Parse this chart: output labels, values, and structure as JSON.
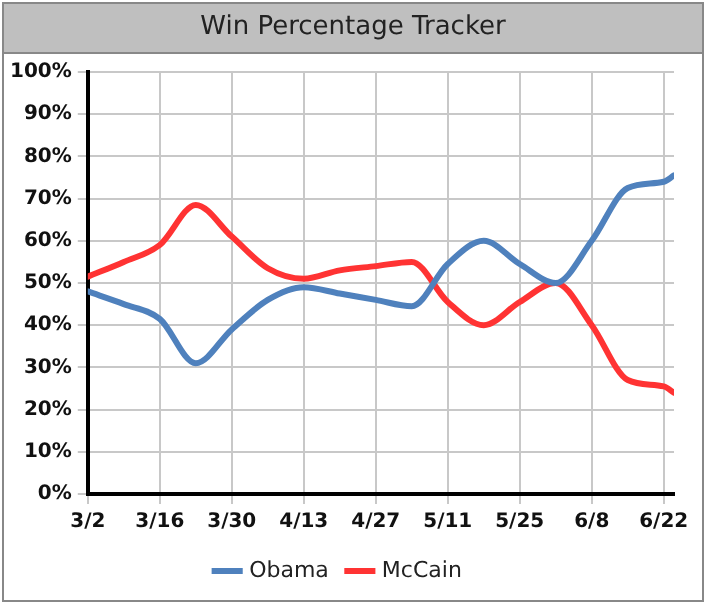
{
  "chart_data": {
    "type": "line",
    "title": "Win Percentage Tracker",
    "x": [
      "--03-02",
      "--03-09",
      "--03-16",
      "--03-23",
      "--03-30",
      "--04-06",
      "--04-13",
      "--04-20",
      "--04-27",
      "--05-04",
      "--05-11",
      "--05-18",
      "--05-25",
      "--06-01",
      "--06-08",
      "--06-15",
      "--06-22",
      "--06-24"
    ],
    "series": [
      {
        "name": "Obama",
        "color": "#4f81bd",
        "values": [
          48,
          45,
          41.5,
          31,
          39,
          46,
          49,
          47.5,
          46,
          44.5,
          54.5,
          60,
          54.5,
          50,
          60,
          72.5,
          74,
          75.5
        ]
      },
      {
        "name": "McCain",
        "color": "#ff3333",
        "values": [
          51.5,
          55,
          59,
          68.5,
          61,
          53.5,
          51,
          53,
          54,
          55,
          45.5,
          40,
          45.5,
          50,
          40,
          27,
          25.5,
          24
        ]
      }
    ],
    "xlim": [
      "--03-02",
      "--06-24"
    ],
    "xticks": [
      {
        "value": "--03-02",
        "label": "3/2"
      },
      {
        "value": "--03-16",
        "label": "3/16"
      },
      {
        "value": "--03-30",
        "label": "3/30"
      },
      {
        "value": "--04-13",
        "label": "4/13"
      },
      {
        "value": "--04-27",
        "label": "4/27"
      },
      {
        "value": "--05-11",
        "label": "5/11"
      },
      {
        "value": "--05-25",
        "label": "5/25"
      },
      {
        "value": "--06-08",
        "label": "6/8"
      },
      {
        "value": "--06-22",
        "label": "6/22"
      }
    ],
    "ylim": [
      0,
      100
    ],
    "yticks": [
      {
        "value": 0,
        "label": "0%"
      },
      {
        "value": 10,
        "label": "10%"
      },
      {
        "value": 20,
        "label": "20%"
      },
      {
        "value": 30,
        "label": "30%"
      },
      {
        "value": 40,
        "label": "40%"
      },
      {
        "value": 50,
        "label": "50%"
      },
      {
        "value": 60,
        "label": "60%"
      },
      {
        "value": 70,
        "label": "70%"
      },
      {
        "value": 80,
        "label": "80%"
      },
      {
        "value": 90,
        "label": "90%"
      },
      {
        "value": 100,
        "label": "100%"
      }
    ],
    "grid": true,
    "legend": "bottom",
    "marker": "none",
    "line_style": "solid"
  }
}
